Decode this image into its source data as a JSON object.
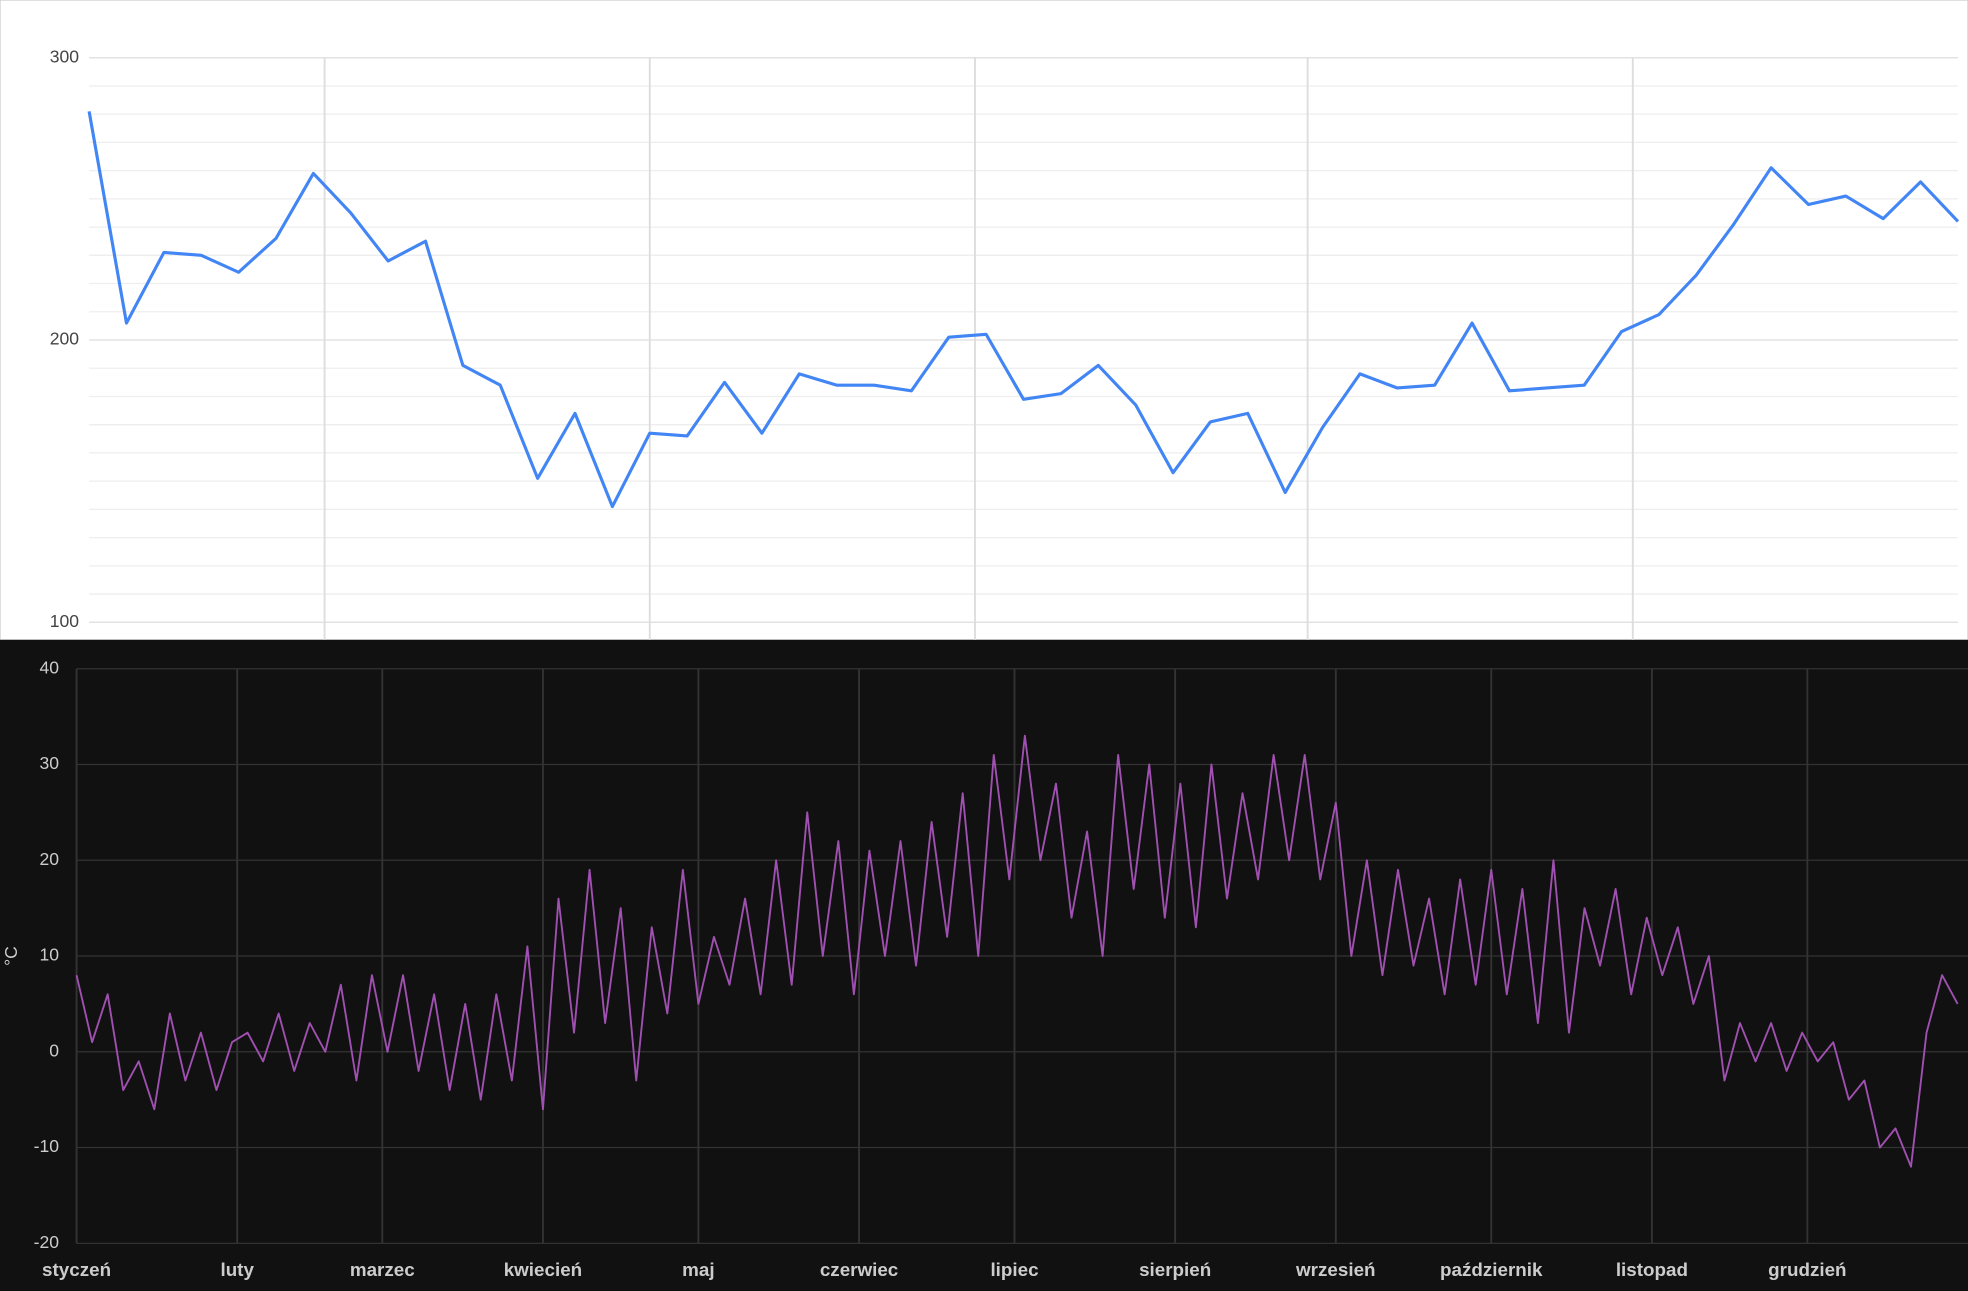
{
  "chart_data": [
    {
      "type": "line",
      "x": [
        0,
        1,
        2,
        3,
        4,
        5,
        6,
        7,
        8,
        9,
        10,
        11,
        12,
        13,
        14,
        15,
        16,
        17,
        18,
        19,
        20,
        21,
        22,
        23,
        24,
        25,
        26,
        27,
        28,
        29,
        30,
        31,
        32,
        33,
        34,
        35,
        36,
        37,
        38,
        39,
        40,
        41,
        42,
        43,
        44,
        45,
        46,
        47,
        48,
        49,
        50
      ],
      "series": [
        {
          "color": "#4285f4",
          "values": [
            281,
            206,
            231,
            230,
            224,
            236,
            259,
            245,
            228,
            235,
            191,
            184,
            151,
            174,
            141,
            167,
            166,
            185,
            167,
            188,
            184,
            184,
            182,
            201,
            202,
            179,
            181,
            191,
            177,
            153,
            171,
            174,
            146,
            169,
            188,
            183,
            184,
            206,
            182,
            183,
            184,
            203,
            209,
            223,
            241,
            261,
            248,
            251,
            243,
            256,
            242
          ]
        }
      ],
      "xlim": [
        0,
        50
      ],
      "xticks": [
        6.3,
        15,
        23.7,
        32.6,
        41.3
      ],
      "ylim": [
        100,
        300
      ],
      "yticks": [
        100,
        200,
        300
      ],
      "yminor": [
        110,
        120,
        130,
        140,
        150,
        160,
        170,
        180,
        190,
        210,
        220,
        230,
        240,
        250,
        260,
        270,
        280,
        290
      ],
      "grid": true
    },
    {
      "type": "line",
      "ylabel": "°C",
      "x": [
        0,
        3,
        6,
        9,
        12,
        15,
        18,
        21,
        24,
        27,
        30,
        33,
        36,
        39,
        42,
        45,
        48,
        51,
        54,
        57,
        60,
        63,
        66,
        69,
        72,
        75,
        78,
        81,
        84,
        87,
        90,
        93,
        96,
        99,
        102,
        105,
        108,
        111,
        114,
        117,
        120,
        123,
        126,
        129,
        132,
        135,
        138,
        141,
        144,
        147,
        150,
        153,
        156,
        159,
        162,
        165,
        168,
        171,
        174,
        177,
        180,
        183,
        186,
        189,
        192,
        195,
        198,
        201,
        204,
        207,
        210,
        213,
        216,
        219,
        222,
        225,
        228,
        231,
        234,
        237,
        240,
        243,
        246,
        249,
        252,
        255,
        258,
        261,
        264,
        267,
        270,
        273,
        276,
        279,
        282,
        285,
        288,
        291,
        294,
        297,
        300,
        303,
        306,
        309,
        312,
        315,
        318,
        321,
        324,
        327,
        330,
        333,
        336,
        339,
        342,
        345,
        348,
        351,
        354,
        357,
        360,
        363
      ],
      "series": [
        {
          "color": "#a050b0",
          "values": [
            8,
            1,
            6,
            -4,
            -1,
            -6,
            4,
            -3,
            2,
            -4,
            1,
            2,
            -1,
            4,
            -2,
            3,
            0,
            7,
            -3,
            8,
            0,
            8,
            -2,
            6,
            -4,
            5,
            -5,
            6,
            -3,
            11,
            -6,
            16,
            2,
            19,
            3,
            15,
            -3,
            13,
            4,
            19,
            5,
            12,
            7,
            16,
            6,
            20,
            7,
            25,
            10,
            22,
            6,
            21,
            10,
            22,
            9,
            24,
            12,
            27,
            10,
            31,
            18,
            33,
            20,
            28,
            14,
            23,
            10,
            31,
            17,
            30,
            14,
            28,
            13,
            30,
            16,
            27,
            18,
            31,
            20,
            31,
            18,
            26,
            10,
            20,
            8,
            19,
            9,
            16,
            6,
            18,
            7,
            19,
            6,
            17,
            3,
            20,
            2,
            15,
            9,
            17,
            6,
            14,
            8,
            13,
            5,
            10,
            -3,
            3,
            -1,
            3,
            -2,
            2,
            -1,
            1,
            -5,
            -3,
            -10,
            -8,
            -12,
            2,
            8,
            5
          ]
        }
      ],
      "xlim": [
        0,
        365
      ],
      "xticks": [
        {
          "value": 0,
          "label": "styczeń"
        },
        {
          "value": 31,
          "label": "luty"
        },
        {
          "value": 59,
          "label": "marzec"
        },
        {
          "value": 90,
          "label": "kwiecień"
        },
        {
          "value": 120,
          "label": "maj"
        },
        {
          "value": 151,
          "label": "czerwiec"
        },
        {
          "value": 181,
          "label": "lipiec"
        },
        {
          "value": 212,
          "label": "sierpień"
        },
        {
          "value": 243,
          "label": "wrzesień"
        },
        {
          "value": 273,
          "label": "październik"
        },
        {
          "value": 304,
          "label": "listopad"
        },
        {
          "value": 334,
          "label": "grudzień"
        }
      ],
      "ylim": [
        -20,
        40
      ],
      "yticks": [
        -20,
        -10,
        0,
        10,
        20,
        30,
        40
      ],
      "grid": true
    }
  ]
}
